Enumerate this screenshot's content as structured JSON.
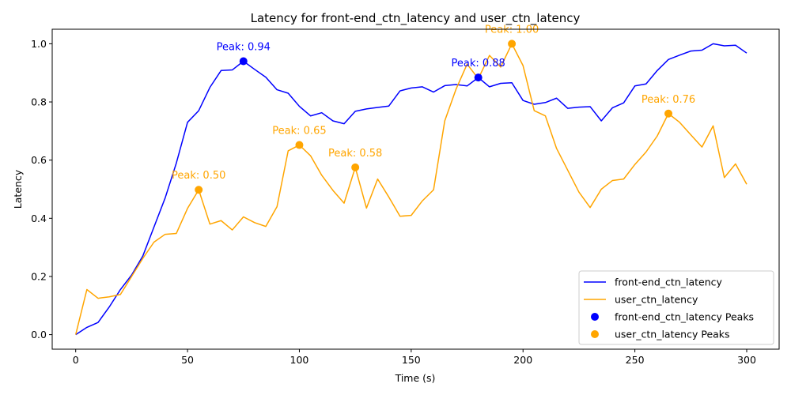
{
  "chart_data": {
    "type": "line",
    "title": "Latency for front-end_ctn_latency and user_ctn_latency",
    "xlabel": "Time (s)",
    "ylabel": "Latency",
    "xlim": [
      -10.5,
      314.5
    ],
    "ylim": [
      -0.05,
      1.05
    ],
    "xticks": [
      0,
      50,
      100,
      150,
      200,
      250,
      300
    ],
    "xtick_labels": [
      "0",
      "50",
      "100",
      "150",
      "200",
      "250",
      "300"
    ],
    "yticks": [
      0.0,
      0.2,
      0.4,
      0.6,
      0.8,
      1.0
    ],
    "ytick_labels": [
      "0.0",
      "0.2",
      "0.4",
      "0.6",
      "0.8",
      "1.0"
    ],
    "grid": false,
    "legend_position": "lower-right",
    "x": [
      0,
      5,
      10,
      15,
      20,
      25,
      30,
      35,
      40,
      45,
      50,
      55,
      60,
      65,
      70,
      75,
      80,
      85,
      90,
      95,
      100,
      105,
      110,
      115,
      120,
      125,
      130,
      135,
      140,
      145,
      150,
      155,
      160,
      165,
      170,
      175,
      180,
      185,
      190,
      195,
      200,
      205,
      210,
      215,
      220,
      225,
      230,
      235,
      240,
      245,
      250,
      255,
      260,
      265,
      270,
      275,
      280,
      285,
      290,
      295,
      300
    ],
    "series": [
      {
        "name": "front-end_ctn_latency",
        "color": "#0000ff",
        "values": [
          0.0,
          0.025,
          0.042,
          0.095,
          0.155,
          0.205,
          0.27,
          0.37,
          0.47,
          0.59,
          0.73,
          0.77,
          0.85,
          0.908,
          0.91,
          0.94,
          0.912,
          0.885,
          0.842,
          0.83,
          0.785,
          0.752,
          0.763,
          0.735,
          0.725,
          0.768,
          0.776,
          0.781,
          0.786,
          0.838,
          0.848,
          0.852,
          0.834,
          0.856,
          0.86,
          0.855,
          0.884,
          0.852,
          0.864,
          0.866,
          0.805,
          0.792,
          0.798,
          0.813,
          0.778,
          0.782,
          0.784,
          0.735,
          0.78,
          0.797,
          0.855,
          0.862,
          0.908,
          0.946,
          0.961,
          0.975,
          0.978,
          1.0,
          0.993,
          0.995,
          0.968
        ]
      },
      {
        "name": "user_ctn_latency",
        "color": "#ffa500",
        "values": [
          0.0,
          0.155,
          0.125,
          0.13,
          0.138,
          0.2,
          0.262,
          0.318,
          0.345,
          0.348,
          0.434,
          0.498,
          0.38,
          0.392,
          0.36,
          0.405,
          0.385,
          0.372,
          0.44,
          0.632,
          0.652,
          0.615,
          0.548,
          0.496,
          0.452,
          0.575,
          0.435,
          0.535,
          0.473,
          0.407,
          0.41,
          0.46,
          0.498,
          0.735,
          0.843,
          0.93,
          0.88,
          0.96,
          0.92,
          1.0,
          0.925,
          0.77,
          0.752,
          0.64,
          0.565,
          0.49,
          0.437,
          0.5,
          0.53,
          0.535,
          0.585,
          0.628,
          0.683,
          0.76,
          0.73,
          0.687,
          0.645,
          0.718,
          0.54,
          0.587,
          0.517
        ]
      }
    ],
    "peak_series": [
      {
        "name": "front-end_ctn_latency Peaks",
        "color": "#0000ff",
        "points": [
          {
            "x": 75,
            "y": 0.94,
            "label": "Peak: 0.94"
          },
          {
            "x": 180,
            "y": 0.884,
            "label": "Peak: 0.88"
          }
        ]
      },
      {
        "name": "user_ctn_latency Peaks",
        "color": "#ffa500",
        "points": [
          {
            "x": 55,
            "y": 0.498,
            "label": "Peak: 0.50"
          },
          {
            "x": 100,
            "y": 0.652,
            "label": "Peak: 0.65"
          },
          {
            "x": 125,
            "y": 0.575,
            "label": "Peak: 0.58"
          },
          {
            "x": 195,
            "y": 1.0,
            "label": "Peak: 1.00"
          },
          {
            "x": 265,
            "y": 0.76,
            "label": "Peak: 0.76"
          }
        ]
      }
    ]
  }
}
